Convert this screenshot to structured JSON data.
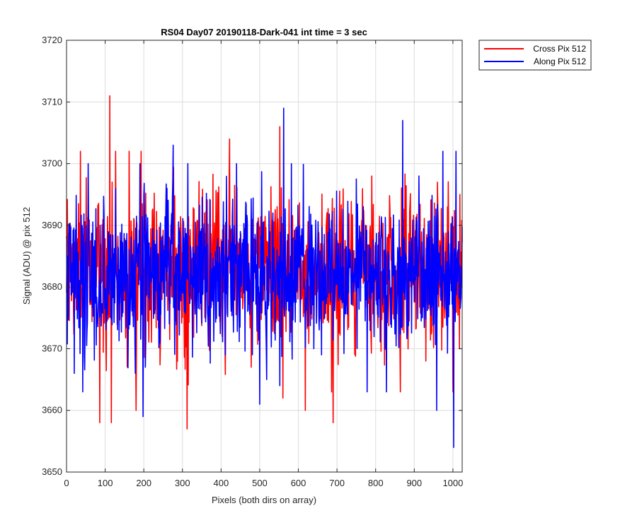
{
  "chart_data": {
    "type": "line",
    "title": "RS04 Day07 20190118-Dark-041 int time = 3 sec",
    "xlabel": "Pixels (both dirs on array)",
    "ylabel": "Signal (ADU) @ pix 512",
    "xlim": [
      0,
      1024
    ],
    "ylim": [
      3650,
      3720
    ],
    "xticks": [
      0,
      100,
      200,
      300,
      400,
      500,
      600,
      700,
      800,
      900,
      1000
    ],
    "yticks": [
      3650,
      3660,
      3670,
      3680,
      3690,
      3700,
      3710,
      3720
    ],
    "grid": true,
    "legend_position": "outside-top-right",
    "series": [
      {
        "name": "Cross Pix 512",
        "color": "#ff0000",
        "baseline": 3683,
        "peaks": [
          [
            36,
            3702
          ],
          [
            86,
            3658
          ],
          [
            112,
            3711
          ],
          [
            116,
            3658
          ],
          [
            127,
            3702
          ],
          [
            162,
            3702
          ],
          [
            180,
            3660
          ],
          [
            193,
            3702
          ],
          [
            312,
            3657
          ],
          [
            422,
            3704
          ],
          [
            478,
            3667
          ],
          [
            552,
            3706
          ],
          [
            560,
            3662
          ],
          [
            618,
            3660
          ],
          [
            686,
            3663
          ],
          [
            690,
            3658
          ],
          [
            790,
            3698
          ],
          [
            864,
            3663
          ],
          [
            930,
            3668
          ],
          [
            960,
            3697
          ],
          [
            1000,
            3663
          ],
          [
            1018,
            3695
          ]
        ]
      },
      {
        "name": "Along Pix 512",
        "color": "#0000ff",
        "baseline": 3682,
        "peaks": [
          [
            20,
            3666
          ],
          [
            42,
            3663
          ],
          [
            127,
            3696
          ],
          [
            178,
            3666
          ],
          [
            190,
            3700
          ],
          [
            198,
            3659
          ],
          [
            204,
            3667
          ],
          [
            260,
            3696
          ],
          [
            276,
            3703
          ],
          [
            440,
            3700
          ],
          [
            500,
            3661
          ],
          [
            518,
            3665
          ],
          [
            552,
            3664
          ],
          [
            562,
            3709
          ],
          [
            582,
            3700
          ],
          [
            640,
            3670
          ],
          [
            660,
            3669
          ],
          [
            778,
            3663
          ],
          [
            828,
            3663
          ],
          [
            870,
            3707
          ],
          [
            912,
            3698
          ],
          [
            958,
            3660
          ],
          [
            974,
            3702
          ],
          [
            1002,
            3654
          ],
          [
            1008,
            3702
          ]
        ]
      }
    ]
  }
}
